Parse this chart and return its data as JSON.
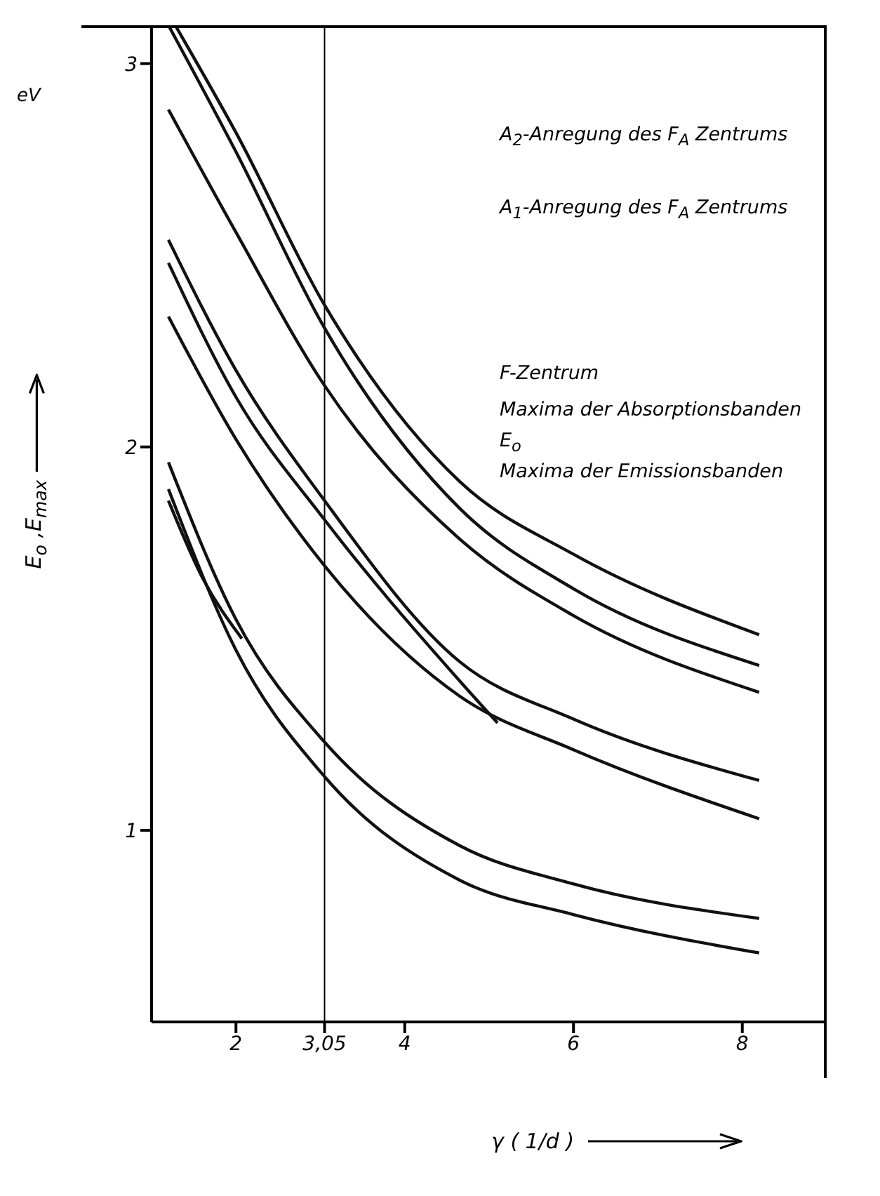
{
  "chart_data": {
    "type": "line",
    "xlabel": "γ ( 1/d )",
    "ylabel": "E$_{o}$ ,E$_{max}$",
    "xlim": [
      1,
      9
    ],
    "ylim": [
      0.5,
      3.1
    ],
    "xticks": [
      2,
      {
        "value": 3.05,
        "label": "3,05"
      },
      4,
      6,
      8
    ],
    "yticks": [
      1,
      2,
      3
    ],
    "grid": false,
    "marker": "none",
    "line_style": "solid",
    "ref_lines": [
      {
        "axis": "x",
        "value": 3.05,
        "color": "#000000"
      }
    ],
    "series": [
      {
        "color": "#111111",
        "x": [
          1.28,
          2,
          3.05,
          4.65,
          6,
          8.2
        ],
        "values": [
          3.1,
          2.82,
          2.37,
          1.91,
          1.72,
          1.51
        ]
      },
      {
        "color": "#111111",
        "x": [
          1.2,
          2,
          3.05,
          4.65,
          6,
          8.2
        ],
        "values": [
          3.1,
          2.77,
          2.31,
          1.84,
          1.63,
          1.43
        ]
      },
      {
        "color": "#111111",
        "x": [
          1.2,
          2,
          3.05,
          4.65,
          6,
          8.2
        ],
        "values": [
          2.88,
          2.56,
          2.16,
          1.76,
          1.56,
          1.36
        ]
      },
      {
        "color": "#111111",
        "x": [
          1.2,
          2,
          3.05,
          4.65,
          6,
          8.2
        ],
        "values": [
          2.54,
          2.2,
          1.86,
          1.44,
          1.29,
          1.13
        ]
      },
      {
        "color": "#111111",
        "x": [
          1.2,
          2,
          3.05,
          4.65,
          5.1
        ],
        "values": [
          2.48,
          2.13,
          1.81,
          1.39,
          1.28
        ]
      },
      {
        "color": "#111111",
        "x": [
          1.2,
          2,
          3.05,
          4.65,
          6,
          8.2
        ],
        "values": [
          2.34,
          2.02,
          1.69,
          1.35,
          1.21,
          1.03
        ]
      },
      {
        "color": "#111111",
        "x": [
          1.2,
          2,
          3.05,
          4.65,
          6,
          8.2
        ],
        "values": [
          1.96,
          1.55,
          1.23,
          0.96,
          0.86,
          0.77
        ]
      },
      {
        "color": "#111111",
        "x": [
          1.2,
          2,
          3.05,
          4.65,
          6,
          8.2
        ],
        "values": [
          1.89,
          1.47,
          1.14,
          0.87,
          0.78,
          0.68
        ]
      },
      {
        "color": "#111111",
        "x": [
          1.2,
          1.6,
          2.07
        ],
        "values": [
          1.86,
          1.66,
          1.5
        ]
      }
    ],
    "annotations": [
      "eV",
      "A$_{2}$-Anregung des F$_{A}$ Zentrums",
      "A$_{1}$-Anregung des F$_{A}$ Zentrums",
      "F-Zentrum",
      "Maxima der Absorptionsbanden",
      "E$_{o}$",
      "Maxima der Emissionsbanden"
    ]
  }
}
